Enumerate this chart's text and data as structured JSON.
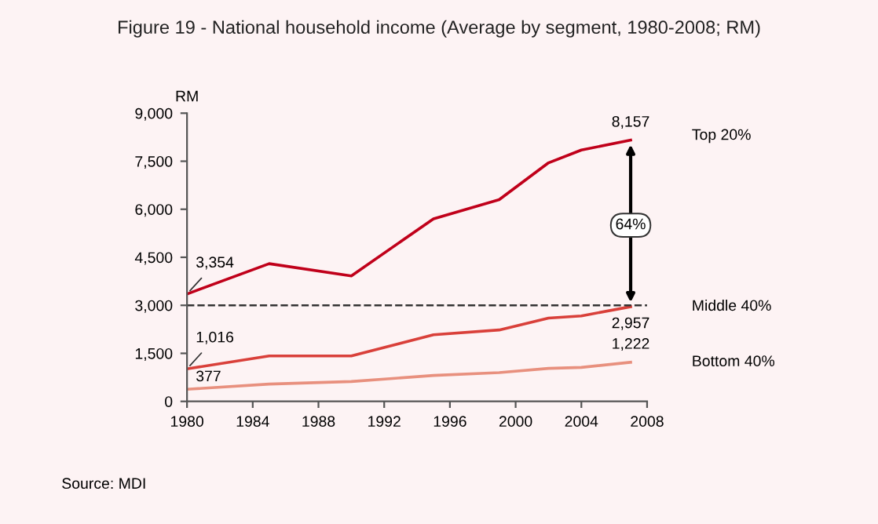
{
  "chart_data": {
    "type": "line",
    "title": "Figure 19 - National household income (Average by segment, 1980-2008; RM)",
    "ylabel": "RM",
    "x": [
      1980,
      1985,
      1990,
      1995,
      1999,
      2002,
      2004,
      2007
    ],
    "series": [
      {
        "name": "Top 20%",
        "color": "#c0001a",
        "values": [
          3354,
          4300,
          3920,
          5700,
          6300,
          7450,
          7850,
          8157
        ],
        "value_labels": [
          "3,354",
          null,
          null,
          null,
          null,
          null,
          null,
          "8,157"
        ]
      },
      {
        "name": "Middle 40%",
        "color": "#d9403a",
        "values": [
          1016,
          1420,
          1420,
          2080,
          2230,
          2600,
          2670,
          2957
        ],
        "value_labels": [
          "1,016",
          null,
          null,
          null,
          null,
          null,
          null,
          "2,957"
        ]
      },
      {
        "name": "Bottom 40%",
        "color": "#e8907e",
        "values": [
          377,
          540,
          620,
          810,
          900,
          1030,
          1060,
          1222
        ],
        "value_labels": [
          "377",
          null,
          null,
          null,
          null,
          null,
          null,
          "1,222"
        ]
      }
    ],
    "xlim": [
      1980,
      2008
    ],
    "xticks": [
      1980,
      1984,
      1988,
      1992,
      1996,
      2000,
      2004,
      2008
    ],
    "ylim": [
      0,
      9000
    ],
    "yticks": [
      {
        "value": 0,
        "label": "0"
      },
      {
        "value": 1500,
        "label": "1,500"
      },
      {
        "value": 3000,
        "label": "3,000"
      },
      {
        "value": 4500,
        "label": "4,500"
      },
      {
        "value": 6000,
        "label": "6,000"
      },
      {
        "value": 7500,
        "label": "7,500"
      },
      {
        "value": 9000,
        "label": "9,000"
      }
    ],
    "ref_lines": [
      {
        "axis": "y",
        "value": 3000,
        "color": "#333333",
        "line_style": "dashed"
      }
    ],
    "annotations": [
      {
        "text": "64%",
        "x": 2007,
        "y": 5500
      },
      "Source: MDI"
    ],
    "grid": false,
    "legend": false,
    "marker": "none",
    "line_style": "solid"
  }
}
